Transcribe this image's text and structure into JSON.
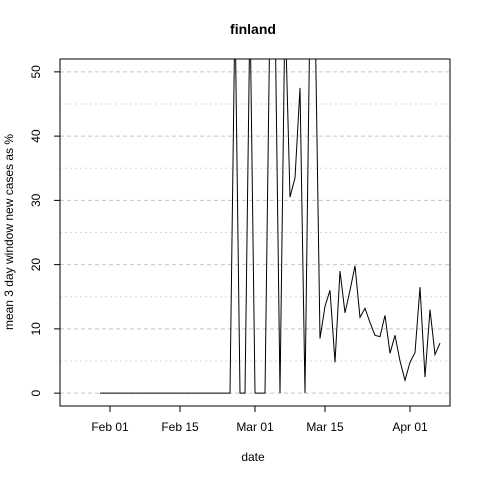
{
  "chart_data": {
    "type": "line",
    "title": "finland",
    "xlabel": "date",
    "ylabel": "mean  3  day window new cases as %",
    "ylim": [
      -2,
      52
    ],
    "xlim": [
      "2020-01-22",
      "2020-04-09"
    ],
    "y_ticks": [
      0,
      10,
      20,
      30,
      40,
      50
    ],
    "x_ticks": [
      {
        "date": "2020-02-01",
        "label": "Feb 01"
      },
      {
        "date": "2020-02-15",
        "label": "Feb 15"
      },
      {
        "date": "2020-03-01",
        "label": "Mar 01"
      },
      {
        "date": "2020-03-15",
        "label": "Mar 15"
      },
      {
        "date": "2020-04-01",
        "label": "Apr 01"
      }
    ],
    "grid": true,
    "series": [
      {
        "x": [
          "2020-01-30",
          "2020-02-01",
          "2020-02-05",
          "2020-02-10",
          "2020-02-15",
          "2020-02-20",
          "2020-02-25",
          "2020-02-26",
          "2020-02-27",
          "2020-02-28",
          "2020-02-29",
          "2020-03-01",
          "2020-03-02",
          "2020-03-03",
          "2020-03-04",
          "2020-03-05",
          "2020-03-06",
          "2020-03-07",
          "2020-03-08",
          "2020-03-09",
          "2020-03-10",
          "2020-03-11",
          "2020-03-12",
          "2020-03-13",
          "2020-03-14",
          "2020-03-15",
          "2020-03-16",
          "2020-03-17",
          "2020-03-18",
          "2020-03-19",
          "2020-03-20",
          "2020-03-21",
          "2020-03-22",
          "2020-03-23",
          "2020-03-24",
          "2020-03-25",
          "2020-03-26",
          "2020-03-27",
          "2020-03-28",
          "2020-03-29",
          "2020-03-30",
          "2020-03-31",
          "2020-04-01",
          "2020-04-02",
          "2020-04-03",
          "2020-04-04",
          "2020-04-05",
          "2020-04-06",
          "2020-04-07"
        ],
        "y": [
          0,
          0,
          0,
          0,
          0,
          0,
          0,
          60,
          0,
          0,
          60,
          0,
          0,
          0,
          60,
          60,
          0,
          60,
          30.5,
          33.5,
          47.5,
          0,
          60,
          60,
          8.5,
          13.5,
          16,
          4.8,
          19,
          12.5,
          16,
          19.8,
          11.8,
          13.2,
          11,
          9,
          8.8,
          12.1,
          6.2,
          9,
          5,
          2,
          4.8,
          6.3,
          16.5,
          2.5,
          13,
          6,
          7.8
        ]
      }
    ]
  }
}
